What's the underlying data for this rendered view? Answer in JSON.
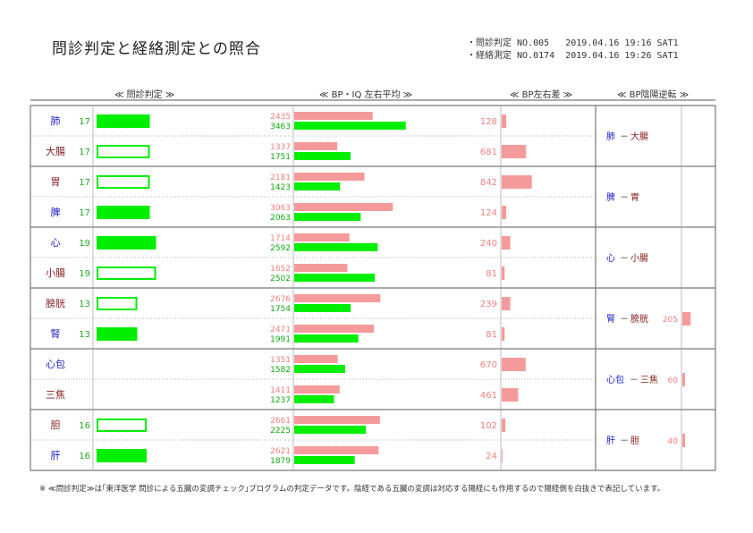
{
  "title": "問診判定と経絡測定との照合",
  "meta": {
    "line1": "・問診判定 NO.005   2019.04.16 19:16 SAT1",
    "line2": "・経絡測定 NO.0174  2019.04.16 19:26 SAT1"
  },
  "headers": {
    "monshin": "≪ 問診判定 ≫",
    "bp": "≪ BP・IQ 左右平均 ≫",
    "diff": "≪ BP左右差 ≫",
    "inyo": "≪ BP陰陽逆転 ≫"
  },
  "footnote": "※ ≪問診判定≫は｢東洋医学 問診による五臓の変調チェック｣プログラムの判定データです。陰経である五臓の変調は対応する陽経にも作用するので陽経側を白抜きで表記しています。",
  "colors": {
    "green": "#00ee00",
    "pink": "#f59a9a",
    "yin_text": "#2222cc",
    "yang_text": "#882222",
    "monshin_num": "#22aa22",
    "upper_num": "#f08080",
    "lower_num": "#11aa11",
    "diff_num": "#f08080",
    "inyo_num": "#f08080"
  },
  "chart_data": {
    "type": "bar",
    "rows": [
      {
        "organ": "肺",
        "kind": "yin",
        "monshin": 17,
        "filled": true,
        "bp_upper": 2435,
        "bp_lower": 3463,
        "diff": 128
      },
      {
        "organ": "大腸",
        "kind": "yang",
        "monshin": 17,
        "filled": false,
        "bp_upper": 1337,
        "bp_lower": 1751,
        "diff": 681
      },
      {
        "organ": "胃",
        "kind": "yang",
        "monshin": 17,
        "filled": false,
        "bp_upper": 2181,
        "bp_lower": 1423,
        "diff": 842
      },
      {
        "organ": "脾",
        "kind": "yin",
        "monshin": 17,
        "filled": true,
        "bp_upper": 3063,
        "bp_lower": 2063,
        "diff": 124
      },
      {
        "organ": "心",
        "kind": "yin",
        "monshin": 19,
        "filled": true,
        "bp_upper": 1714,
        "bp_lower": 2592,
        "diff": 240
      },
      {
        "organ": "小腸",
        "kind": "yang",
        "monshin": 19,
        "filled": false,
        "bp_upper": 1652,
        "bp_lower": 2502,
        "diff": 81
      },
      {
        "organ": "膀胱",
        "kind": "yang",
        "monshin": 13,
        "filled": false,
        "bp_upper": 2676,
        "bp_lower": 1754,
        "diff": 239
      },
      {
        "organ": "腎",
        "kind": "yin",
        "monshin": 13,
        "filled": true,
        "bp_upper": 2471,
        "bp_lower": 1991,
        "diff": 81
      },
      {
        "organ": "心包",
        "kind": "yin",
        "monshin": null,
        "filled": true,
        "bp_upper": 1351,
        "bp_lower": 1582,
        "diff": 670
      },
      {
        "organ": "三焦",
        "kind": "yang",
        "monshin": null,
        "filled": false,
        "bp_upper": 1411,
        "bp_lower": 1237,
        "diff": 461
      },
      {
        "organ": "胆",
        "kind": "yang",
        "monshin": 16,
        "filled": false,
        "bp_upper": 2661,
        "bp_lower": 2225,
        "diff": 102
      },
      {
        "organ": "肝",
        "kind": "yin",
        "monshin": 16,
        "filled": true,
        "bp_upper": 2621,
        "bp_lower": 1879,
        "diff": 24
      }
    ],
    "inyo": [
      {
        "yin": "肺",
        "yang": "大腸",
        "value": null
      },
      {
        "yin": "脾",
        "yang": "胃",
        "value": null
      },
      {
        "yin": "心",
        "yang": "小腸",
        "value": null
      },
      {
        "yin": "腎",
        "yang": "膀胱",
        "value": 205
      },
      {
        "yin": "心包",
        "yang": "三焦",
        "value": 60
      },
      {
        "yin": "肝",
        "yang": "胆",
        "value": 40
      }
    ],
    "monshin_max": 20,
    "bp_max": 4000,
    "diff_max": 1000
  }
}
